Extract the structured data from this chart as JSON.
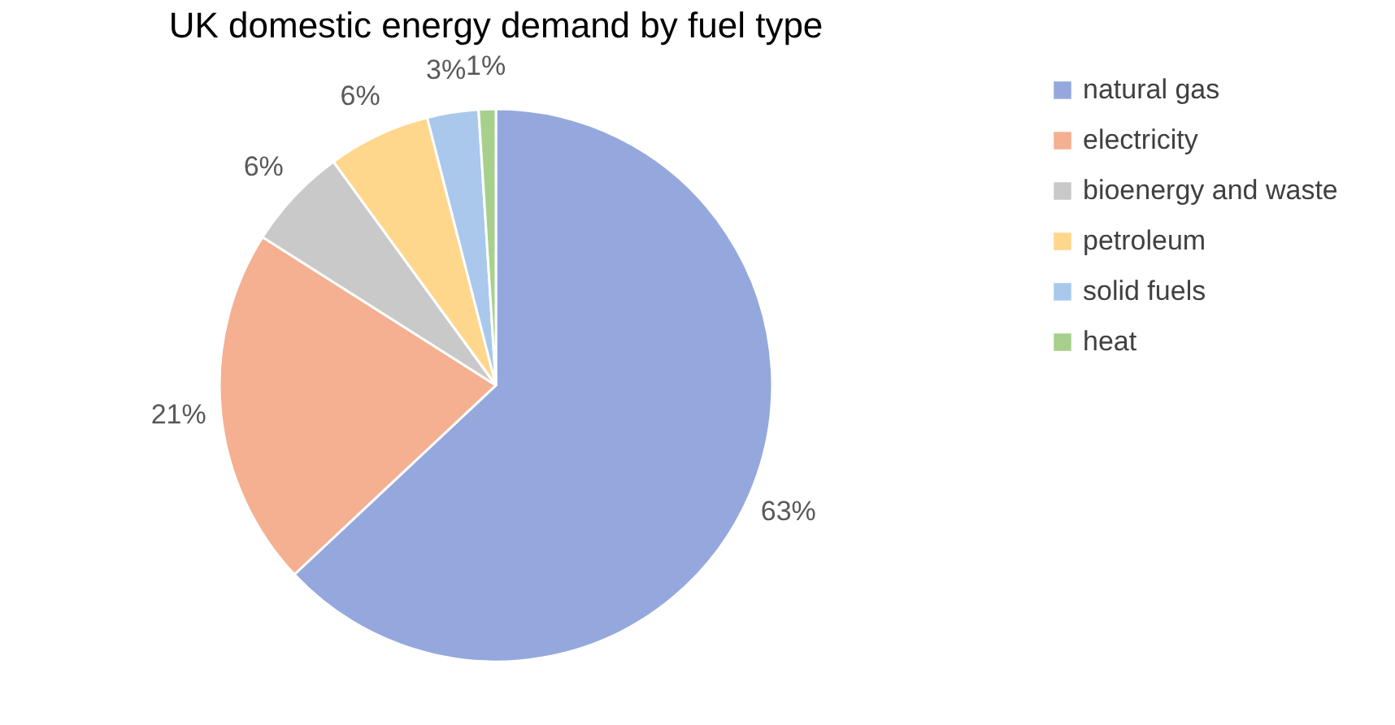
{
  "chart_data": {
    "type": "pie",
    "title": "UK domestic energy demand by fuel type",
    "categories": [
      "natural gas",
      "electricity",
      "bioenergy and waste",
      "petroleum",
      "solid fuels",
      "heat"
    ],
    "values": [
      63,
      21,
      6,
      6,
      3,
      1
    ],
    "value_labels": [
      "63%",
      "21%",
      "6%",
      "6%",
      "3%",
      "1%"
    ],
    "colors": [
      "#95a8de",
      "#f4b090",
      "#c9c9c9",
      "#ffd78c",
      "#a9c8ec",
      "#a8d08d"
    ],
    "legend": "right"
  }
}
